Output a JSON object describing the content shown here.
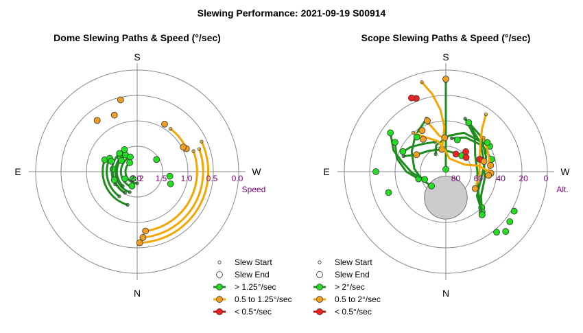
{
  "title": "Slewing Performance: 2021-09-19 S00914",
  "colors": {
    "fast": "#1e8c1e",
    "fast_marker": "#22dd22",
    "medium": "#f5a500",
    "medium_marker": "#f0a020",
    "slow": "#cc1111",
    "slow_marker": "#ee2222",
    "grid": "#888888",
    "purple": "#800080",
    "shade": "#cccccc"
  },
  "chart_data": [
    {
      "type": "polar",
      "title": "Dome Slewing Paths & Speed (°/sec)",
      "directions": {
        "top": "S",
        "bottom": "N",
        "left": "E",
        "right": "W"
      },
      "radial_axis": {
        "label": "Speed",
        "range": [
          2.0,
          0.0
        ],
        "tick_labels": [
          "2.0",
          "1.5",
          "1.0",
          "0.5",
          "0.0"
        ],
        "partial_tick_label": "2"
      },
      "legend": [
        {
          "label": "Slew Start",
          "marker": "small-open"
        },
        {
          "label": "Slew End",
          "marker": "open"
        },
        {
          "label": "> 1.25°/sec",
          "class": "fast"
        },
        {
          "label": "0.5 to 1.25°/sec",
          "class": "medium"
        },
        {
          "label": "< 0.5°/sec",
          "class": "slow"
        }
      ],
      "arcs": [
        {
          "speed": 1.32,
          "from_deg": 196,
          "to_deg": 290,
          "class": "fast"
        },
        {
          "speed": 1.4,
          "from_deg": 216,
          "to_deg": 296,
          "class": "fast"
        },
        {
          "speed": 1.52,
          "from_deg": 210,
          "to_deg": 276,
          "class": "fast"
        },
        {
          "speed": 1.57,
          "from_deg": 200,
          "to_deg": 310,
          "class": "fast"
        },
        {
          "speed": 1.6,
          "from_deg": 225,
          "to_deg": 325,
          "class": "fast"
        },
        {
          "speed": 1.68,
          "from_deg": 200,
          "to_deg": 335,
          "class": "fast"
        },
        {
          "speed": 1.77,
          "from_deg": 180,
          "to_deg": 320,
          "class": "fast"
        },
        {
          "speed": 1.5,
          "from_deg": 240,
          "to_deg": 330,
          "class": "fast"
        },
        {
          "speed": 0.93,
          "from_deg": 38,
          "to_deg": 65,
          "class": "medium"
        },
        {
          "speed": 0.6,
          "from_deg": 65,
          "to_deg": 178,
          "class": "medium"
        },
        {
          "speed": 0.7,
          "from_deg": 70,
          "to_deg": 175,
          "class": "medium"
        },
        {
          "speed": 0.82,
          "from_deg": 70,
          "to_deg": 172,
          "class": "medium"
        }
      ],
      "points": [
        {
          "speed": 0.55,
          "deg": 347,
          "class": "medium"
        },
        {
          "speed": 0.72,
          "deg": 322,
          "class": "medium"
        },
        {
          "speed": 0.8,
          "deg": 338,
          "class": "medium"
        },
        {
          "speed": 0.92,
          "deg": 30,
          "class": "medium"
        },
        {
          "speed": 0.97,
          "deg": 62,
          "class": "medium"
        },
        {
          "speed": 1.45,
          "deg": 292,
          "class": "fast"
        },
        {
          "speed": 1.5,
          "deg": 316,
          "class": "fast"
        },
        {
          "speed": 1.62,
          "deg": 305,
          "class": "fast"
        },
        {
          "speed": 1.7,
          "deg": 200,
          "class": "fast"
        },
        {
          "speed": 1.35,
          "deg": 98,
          "class": "fast"
        },
        {
          "speed": 1.3,
          "deg": 110,
          "class": "fast"
        },
        {
          "speed": 1.52,
          "deg": 250,
          "class": "fast"
        },
        {
          "speed": 1.72,
          "deg": 240,
          "class": "fast"
        },
        {
          "speed": 1.84,
          "deg": 212,
          "class": "fast"
        },
        {
          "speed": 1.55,
          "deg": 58,
          "class": "fast"
        }
      ]
    },
    {
      "type": "polar",
      "title": "Scope Slewing Paths & Speed (°/sec)",
      "directions": {
        "top": "S",
        "bottom": "N",
        "left": "E",
        "right": "W"
      },
      "radial_axis": {
        "label": "Alt.",
        "range": [
          90,
          0
        ],
        "tick_labels": [
          "80",
          "60",
          "40",
          "20",
          "0"
        ]
      },
      "shaded_region": {
        "alt": 67,
        "az_deg": 180,
        "radius_deg": 19
      },
      "legend": [
        {
          "label": "Slew Start",
          "marker": "small-open"
        },
        {
          "label": "Slew End",
          "marker": "open"
        },
        {
          "label": "> 2°/sec",
          "class": "fast"
        },
        {
          "label": "0.5 to 2°/sec",
          "class": "medium"
        },
        {
          "label": "< 0.5°/sec",
          "class": "slow"
        }
      ],
      "paths": [
        {
          "class": "fast",
          "points": [
            [
              10,
              0
            ],
            [
              30,
              0
            ],
            [
              48,
              0
            ],
            [
              62,
              0
            ],
            [
              80,
              0
            ],
            [
              88,
              0
            ]
          ]
        },
        {
          "class": "fast",
          "points": [
            [
              40,
              340
            ],
            [
              48,
              320
            ],
            [
              55,
              300
            ],
            [
              62,
              275
            ],
            [
              68,
              250
            ],
            [
              72,
              225
            ]
          ]
        },
        {
          "class": "fast",
          "points": [
            [
              45,
              30
            ],
            [
              50,
              50
            ],
            [
              55,
              75
            ],
            [
              55,
              100
            ],
            [
              52,
              125
            ],
            [
              45,
              135
            ]
          ]
        },
        {
          "class": "fast",
          "points": [
            [
              42,
              25
            ],
            [
              46,
              45
            ],
            [
              52,
              70
            ],
            [
              58,
              100
            ],
            [
              55,
              128
            ],
            [
              42,
              138
            ]
          ]
        },
        {
          "class": "fast",
          "points": [
            [
              40,
              20
            ],
            [
              50,
              40
            ],
            [
              60,
              60
            ],
            [
              62,
              90
            ],
            [
              58,
              118
            ],
            [
              40,
              140
            ]
          ]
        },
        {
          "class": "fast",
          "points": [
            [
              38,
              300
            ],
            [
              45,
              285
            ],
            [
              55,
              270
            ],
            [
              65,
              255
            ]
          ]
        },
        {
          "class": "fast",
          "points": [
            [
              30,
              305
            ],
            [
              40,
              292
            ],
            [
              50,
              283
            ],
            [
              60,
              268
            ],
            [
              70,
              250
            ]
          ]
        },
        {
          "class": "fast",
          "points": [
            [
              50,
              290
            ],
            [
              60,
              300
            ],
            [
              66,
              320
            ],
            [
              70,
              350
            ],
            [
              72,
              20
            ],
            [
              70,
              45
            ]
          ]
        },
        {
          "class": "fast",
          "points": [
            [
              60,
              10
            ],
            [
              55,
              30
            ],
            [
              50,
              55
            ],
            [
              48,
              75
            ]
          ]
        },
        {
          "class": "fast",
          "points": [
            [
              62,
              340
            ],
            [
              58,
              320
            ],
            [
              52,
              305
            ],
            [
              48,
              295
            ]
          ]
        },
        {
          "class": "fast",
          "points": [
            [
              72,
              330
            ],
            [
              65,
              340
            ],
            [
              58,
              5
            ],
            [
              52,
              25
            ],
            [
              45,
              60
            ]
          ]
        },
        {
          "class": "medium",
          "points": [
            [
              8,
              345
            ],
            [
              20,
              350
            ],
            [
              35,
              355
            ],
            [
              50,
              358
            ],
            [
              62,
              355
            ],
            [
              70,
              350
            ]
          ]
        },
        {
          "class": "medium",
          "points": [
            [
              45,
              320
            ],
            [
              55,
              330
            ],
            [
              62,
              345
            ],
            [
              72,
              0
            ],
            [
              78,
              15
            ],
            [
              72,
              70
            ],
            [
              60,
              80
            ],
            [
              50,
              92
            ]
          ]
        },
        {
          "class": "medium",
          "points": [
            [
              45,
              48
            ],
            [
              48,
              60
            ],
            [
              50,
              75
            ],
            [
              52,
              95
            ]
          ]
        },
        {
          "class": "medium",
          "points": [
            [
              28,
              35
            ],
            [
              40,
              40
            ],
            [
              50,
              50
            ],
            [
              58,
              70
            ],
            [
              60,
              95
            ],
            [
              60,
              120
            ]
          ]
        },
        {
          "class": "medium",
          "points": [
            [
              44,
              340
            ],
            [
              52,
              345
            ],
            [
              58,
              350
            ],
            [
              60,
              358
            ]
          ]
        },
        {
          "class": "slow",
          "points": [
            [
              18,
              335
            ],
            [
              20,
              338
            ]
          ]
        }
      ],
      "points": [
        {
          "alt": 8,
          "az": 0,
          "class": "medium"
        },
        {
          "alt": 18,
          "az": 335,
          "class": "slow"
        },
        {
          "alt": 42,
          "az": 340,
          "class": "medium"
        },
        {
          "alt": 48,
          "az": 330,
          "class": "medium"
        },
        {
          "alt": 55,
          "az": 325,
          "class": "medium"
        },
        {
          "alt": 60,
          "az": 300,
          "class": "medium"
        },
        {
          "alt": 72,
          "az": 30,
          "class": "slow"
        },
        {
          "alt": 68,
          "az": 55,
          "class": "slow"
        },
        {
          "alt": 65,
          "az": 45,
          "class": "slow"
        },
        {
          "alt": 58,
          "az": 70,
          "class": "slow"
        },
        {
          "alt": 55,
          "az": 75,
          "class": "medium"
        },
        {
          "alt": 50,
          "az": 82,
          "class": "medium"
        },
        {
          "alt": 45,
          "az": 55,
          "class": "fast"
        },
        {
          "alt": 42,
          "az": 25,
          "class": "fast"
        },
        {
          "alt": 38,
          "az": 300,
          "class": "fast"
        },
        {
          "alt": 30,
          "az": 305,
          "class": "fast"
        },
        {
          "alt": 28,
          "az": 270,
          "class": "fast"
        },
        {
          "alt": 36,
          "az": 250,
          "class": "fast"
        },
        {
          "alt": 20,
          "az": 120,
          "class": "fast"
        },
        {
          "alt": 18,
          "az": 128,
          "class": "fast"
        },
        {
          "alt": 15,
          "az": 135,
          "class": "fast"
        },
        {
          "alt": 20,
          "az": 140,
          "class": "fast"
        },
        {
          "alt": 50,
          "az": 320,
          "class": "fast"
        },
        {
          "alt": 60,
          "az": 20,
          "class": "fast"
        }
      ]
    }
  ]
}
